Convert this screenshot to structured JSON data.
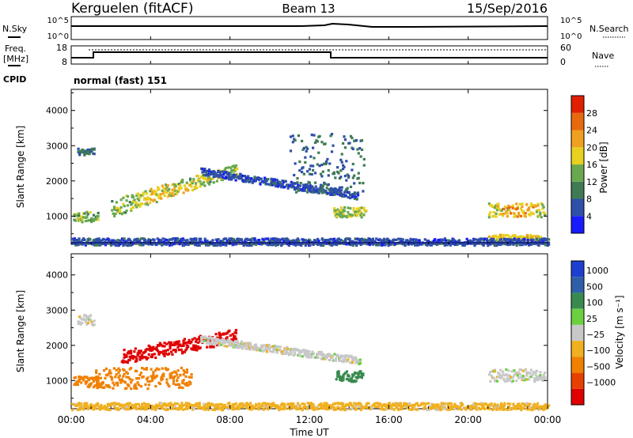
{
  "header": {
    "station": "Kerguelen (fitACF)",
    "beam": "Beam 13",
    "date": "15/Sep/2016"
  },
  "top_panels": {
    "nsky": {
      "label": "N.Sky",
      "ticks": [
        "10^5",
        "10^0"
      ]
    },
    "nsearch": {
      "label": "N.Search",
      "ticks": [
        "10^5",
        "10^0"
      ]
    },
    "freq": {
      "label_line1": "Freq.",
      "label_line2": "[MHz]",
      "ticks": [
        "18",
        "8"
      ]
    },
    "nave": {
      "label": "Nave",
      "ticks": [
        "60",
        "0"
      ]
    },
    "cpid": {
      "label": "CPID",
      "value": "normal (fast) 151"
    }
  },
  "colors": {
    "power": [
      "#1a1aff",
      "#2f4fa8",
      "#3f7a55",
      "#6aa84f",
      "#e8d020",
      "#f0a020",
      "#e86a10",
      "#e02000"
    ],
    "velocity": [
      "#1f3fd0",
      "#2f5fa8",
      "#3a8a50",
      "#6ad040",
      "#c8c8c8",
      "#f0b020",
      "#f08000",
      "#e84000",
      "#e00000"
    ]
  },
  "chart_data": [
    {
      "type": "heatmap",
      "panel": "power",
      "ylabel": "Slant Range [km]",
      "yticks": [
        "1000",
        "2000",
        "3000",
        "4000"
      ],
      "ylim": [
        200,
        4600
      ],
      "xlim_hours": [
        0,
        24
      ],
      "colorbar": {
        "label": "Power [dB]",
        "ticks": [
          "4",
          "8",
          "12",
          "16",
          "20",
          "24",
          "28"
        ],
        "range": [
          0,
          32
        ]
      },
      "echo_regions": [
        {
          "t": [
            0.3,
            1.1
          ],
          "range_km": [
            2750,
            2950
          ],
          "value_db": 8
        },
        {
          "t": [
            0.1,
            1.3
          ],
          "range_km": [
            850,
            1150
          ],
          "value_db": 14
        },
        {
          "t": [
            2.0,
            8.3
          ],
          "range_km_start": [
            1000,
            1500
          ],
          "range_km_end": [
            2200,
            2500
          ],
          "value_db": 14,
          "peak_db": 22
        },
        {
          "t": [
            6.5,
            14.5
          ],
          "range_km_start": [
            2200,
            2400
          ],
          "range_km_end": [
            1500,
            1700
          ],
          "value_db": 6
        },
        {
          "t": [
            11.0,
            14.7
          ],
          "range_km": [
            1700,
            3400
          ],
          "value_db": 8
        },
        {
          "t": [
            13.2,
            14.8
          ],
          "range_km": [
            1000,
            1300
          ],
          "value_db": 16
        },
        {
          "t": [
            21.0,
            23.8
          ],
          "range_km": [
            1000,
            1400
          ],
          "value_db": 16,
          "peak_db": 26
        },
        {
          "t": [
            21.0,
            23.6
          ],
          "range_km": [
            300,
            500
          ],
          "value_db": 18
        },
        {
          "t": [
            0.0,
            24.0
          ],
          "range_km": [
            200,
            400
          ],
          "value_db": 6
        }
      ]
    },
    {
      "type": "heatmap",
      "panel": "velocity",
      "ylabel": "Slant Range [km]",
      "xlabel": "Time UT",
      "xticks": [
        "00:00",
        "04:00",
        "08:00",
        "12:00",
        "16:00",
        "20:00",
        "00:00"
      ],
      "yticks": [
        "1000",
        "2000",
        "3000",
        "4000"
      ],
      "ylim": [
        200,
        4600
      ],
      "xlim_hours": [
        0,
        24
      ],
      "colorbar": {
        "label": "Velocity [m s⁻¹]",
        "ticks": [
          "1000",
          "500",
          "100",
          "25",
          "−25",
          "−100",
          "−500",
          "−1000"
        ]
      },
      "echo_regions": [
        {
          "t": [
            0.3,
            1.1
          ],
          "range_km": [
            2600,
            2900
          ],
          "value_ms": 0
        },
        {
          "t": [
            0.1,
            1.3
          ],
          "range_km": [
            850,
            1150
          ],
          "value_ms": -300
        },
        {
          "t": [
            2.5,
            8.3
          ],
          "range_km_start": [
            1500,
            1900
          ],
          "range_km_end": [
            2100,
            2500
          ],
          "value_ms": -900
        },
        {
          "t": [
            1.2,
            6.0
          ],
          "range_km": [
            800,
            1400
          ],
          "value_ms": -300
        },
        {
          "t": [
            6.5,
            14.5
          ],
          "range_km_start": [
            2100,
            2300
          ],
          "range_km_end": [
            1500,
            1700
          ],
          "value_ms": 0
        },
        {
          "t": [
            13.3,
            14.7
          ],
          "range_km": [
            1000,
            1300
          ],
          "value_ms": 150
        },
        {
          "t": [
            21.0,
            23.8
          ],
          "range_km": [
            1000,
            1350
          ],
          "value_ms": 0
        },
        {
          "t": [
            0.0,
            24.0
          ],
          "range_km": [
            200,
            400
          ],
          "value_ms": -50
        }
      ]
    }
  ]
}
